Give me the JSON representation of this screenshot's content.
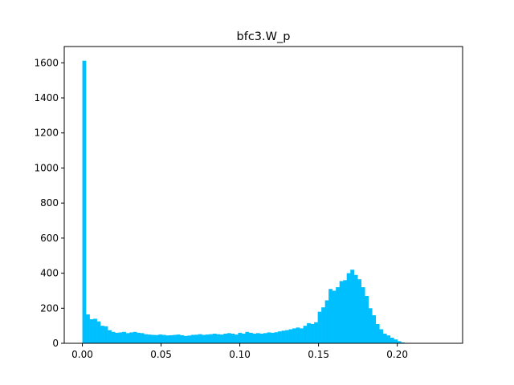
{
  "chart_data": {
    "type": "bar",
    "title": "bfc3.W_p",
    "xlabel": "",
    "ylabel": "",
    "bar_color": "#00bfff",
    "bin_start": 0.0,
    "bin_width": 0.0023,
    "values": [
      1612,
      165,
      137,
      140,
      125,
      100,
      97,
      75,
      65,
      60,
      62,
      65,
      58,
      62,
      65,
      60,
      58,
      52,
      50,
      48,
      47,
      50,
      48,
      45,
      46,
      48,
      50,
      46,
      42,
      44,
      48,
      49,
      52,
      48,
      50,
      52,
      55,
      52,
      50,
      55,
      58,
      55,
      50,
      60,
      55,
      65,
      60,
      55,
      58,
      55,
      58,
      62,
      60,
      63,
      68,
      72,
      75,
      80,
      85,
      90,
      85,
      100,
      115,
      110,
      120,
      180,
      205,
      245,
      310,
      300,
      320,
      355,
      360,
      400,
      420,
      390,
      365,
      320,
      270,
      200,
      160,
      110,
      80,
      55,
      45,
      32,
      22,
      12,
      5,
      2
    ],
    "xlim": [
      -0.0115,
      0.2415
    ],
    "ylim": [
      0,
      1693
    ],
    "xticks": [
      0.0,
      0.05,
      0.1,
      0.15,
      0.2
    ],
    "xtick_labels": [
      "0.00",
      "0.05",
      "0.10",
      "0.15",
      "0.20"
    ],
    "yticks": [
      0,
      200,
      400,
      600,
      800,
      1000,
      1200,
      1400,
      1600
    ],
    "ytick_labels": [
      "0",
      "200",
      "400",
      "600",
      "800",
      "1000",
      "1200",
      "1400",
      "1600"
    ],
    "grid": false,
    "legend": "none"
  }
}
